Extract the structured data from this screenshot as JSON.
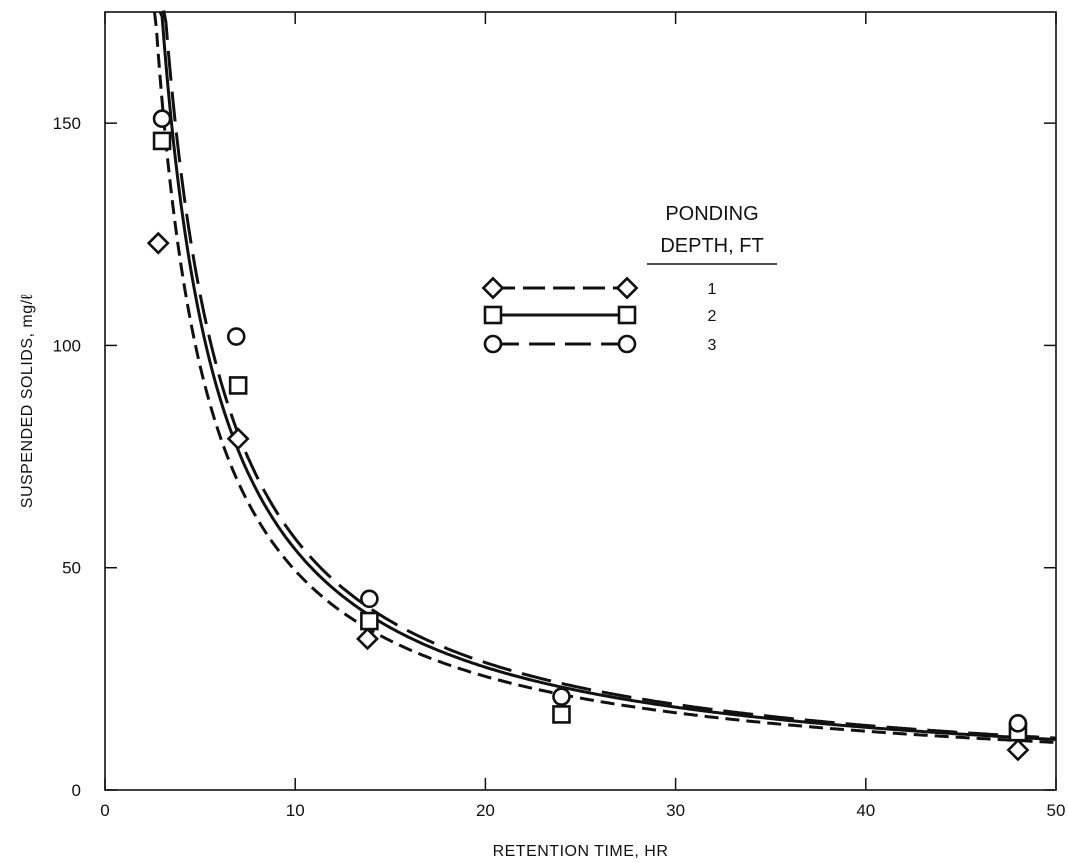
{
  "chart_data": {
    "type": "line",
    "title": "",
    "xlabel": "RETENTION TIME, HR",
    "ylabel": "SUSPENDED SOLIDS, mg/ℓ",
    "xlim": [
      0,
      50
    ],
    "ylim": [
      0,
      175
    ],
    "x_ticks": [
      0,
      10,
      20,
      30,
      40,
      50
    ],
    "y_ticks": [
      0,
      50,
      100,
      150
    ],
    "grid": false,
    "legend": {
      "title_lines": [
        "PONDING",
        "DEPTH, FT"
      ],
      "placement": "top-center"
    },
    "series": [
      {
        "name": "1",
        "marker": "diamond",
        "line_style": "short-dash",
        "points": [
          {
            "x": 2.8,
            "y": 123
          },
          {
            "x": 7.0,
            "y": 79
          },
          {
            "x": 13.8,
            "y": 34
          },
          {
            "x": 48.0,
            "y": 9
          }
        ],
        "curve": {
          "a": 440,
          "b": 0.95,
          "x_start": 2.6
        }
      },
      {
        "name": "2",
        "marker": "square",
        "line_style": "solid",
        "points": [
          {
            "x": 3.0,
            "y": 146
          },
          {
            "x": 7.0,
            "y": 91
          },
          {
            "x": 13.9,
            "y": 38
          },
          {
            "x": 24.0,
            "y": 17
          },
          {
            "x": 48.0,
            "y": 13
          }
        ],
        "curve": {
          "a": 505,
          "b": 0.97,
          "x_start": 2.9
        }
      },
      {
        "name": "3",
        "marker": "circle",
        "line_style": "long-dash",
        "points": [
          {
            "x": 3.0,
            "y": 151
          },
          {
            "x": 6.9,
            "y": 102
          },
          {
            "x": 13.9,
            "y": 43
          },
          {
            "x": 24.0,
            "y": 21
          },
          {
            "x": 48.0,
            "y": 15
          }
        ],
        "curve": {
          "a": 540,
          "b": 0.98,
          "x_start": 3.0
        }
      }
    ]
  }
}
